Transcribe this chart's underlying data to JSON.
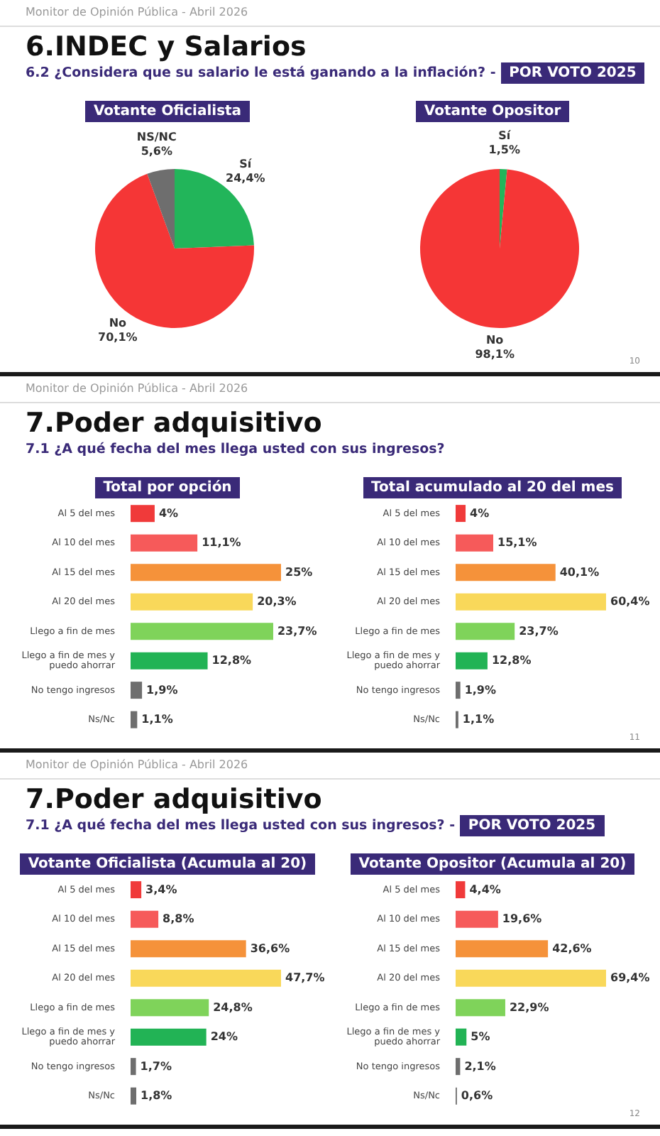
{
  "chart_data": [
    {
      "type": "pie",
      "title": "Votante Oficialista",
      "categories": [
        "Sí",
        "No",
        "NS/NC"
      ],
      "values": [
        24.4,
        70.1,
        5.6
      ],
      "value_labels": [
        "24,4%",
        "70,1%",
        "5,6%"
      ],
      "colors": [
        "#22b55a",
        "#f53636",
        "#6e6e6e"
      ],
      "annotations": [
        "Monitor de Opinión Pública - Abril 2026",
        "6.INDEC y Salarios",
        "6.2 ¿Considera que su salario le está ganando a la inflación? -",
        "POR VOTO 2025"
      ]
    },
    {
      "type": "pie",
      "title": "Votante Opositor",
      "categories": [
        "Sí",
        "No"
      ],
      "values": [
        1.5,
        98.1
      ],
      "value_labels": [
        "1,5%",
        "98,1%"
      ],
      "colors": [
        "#22b55a",
        "#f53636"
      ],
      "annotations": [
        "10"
      ]
    },
    {
      "type": "bar",
      "orientation": "horizontal",
      "title": "Total por opción",
      "categories": [
        "Al 5 del mes",
        "Al 10 del mes",
        "Al 15 del mes",
        "Al 20 del mes",
        "Llego a fin de mes",
        "Llego a fin de mes y puedo ahorrar",
        "No tengo ingresos",
        "Ns/Nc"
      ],
      "values": [
        4,
        11.1,
        25,
        20.3,
        23.7,
        12.8,
        1.9,
        1.1
      ],
      "value_labels": [
        "4%",
        "11,1%",
        "25%",
        "20,3%",
        "23,7%",
        "12,8%",
        "1,9%",
        "1,1%"
      ],
      "colors": [
        "#f03a3a",
        "#f65a5a",
        "#f5923a",
        "#f9d85a",
        "#7fd35a",
        "#22b355",
        "#6e6e6e",
        "#6e6e6e"
      ],
      "annotations": [
        "Monitor de Opinión Pública - Abril 2026",
        "7.Poder adquisitivo",
        "7.1 ¿A qué fecha del mes llega usted con sus ingresos?"
      ]
    },
    {
      "type": "bar",
      "orientation": "horizontal",
      "title": "Total acumulado al 20 del mes",
      "categories": [
        "Al 5 del mes",
        "Al 10 del mes",
        "Al 15 del mes",
        "Al 20 del mes",
        "Llego a fin de mes",
        "Llego a fin de mes y puedo ahorrar",
        "No tengo ingresos",
        "Ns/Nc"
      ],
      "values": [
        4,
        15.1,
        40.1,
        60.4,
        23.7,
        12.8,
        1.9,
        1.1
      ],
      "value_labels": [
        "4%",
        "15,1%",
        "40,1%",
        "60,4%",
        "23,7%",
        "12,8%",
        "1,9%",
        "1,1%"
      ],
      "colors": [
        "#f03a3a",
        "#f65a5a",
        "#f5923a",
        "#f9d85a",
        "#7fd35a",
        "#22b355",
        "#6e6e6e",
        "#6e6e6e"
      ],
      "annotations": [
        "11"
      ]
    },
    {
      "type": "bar",
      "orientation": "horizontal",
      "title": "Votante Oficialista (Acumula al 20)",
      "categories": [
        "Al 5 del mes",
        "Al 10 del mes",
        "Al 15 del mes",
        "Al 20 del mes",
        "Llego a fin de mes",
        "Llego a fin de mes y puedo ahorrar",
        "No tengo ingresos",
        "Ns/Nc"
      ],
      "values": [
        3.4,
        8.8,
        36.6,
        47.7,
        24.8,
        24,
        1.7,
        1.8
      ],
      "value_labels": [
        "3,4%",
        "8,8%",
        "36,6%",
        "47,7%",
        "24,8%",
        "24%",
        "1,7%",
        "1,8%"
      ],
      "colors": [
        "#f03a3a",
        "#f65a5a",
        "#f5923a",
        "#f9d85a",
        "#7fd35a",
        "#22b355",
        "#6e6e6e",
        "#6e6e6e"
      ],
      "annotations": [
        "Monitor de Opinión Pública - Abril 2026",
        "7.Poder adquisitivo",
        "7.1 ¿A qué fecha del mes llega usted con sus ingresos?  -",
        "POR VOTO 2025"
      ]
    },
    {
      "type": "bar",
      "orientation": "horizontal",
      "title": "Votante Opositor (Acumula al 20)",
      "categories": [
        "Al 5 del mes",
        "Al 10 del mes",
        "Al 15 del mes",
        "Al 20 del mes",
        "Llego a fin de mes",
        "Llego a fin de mes y puedo ahorrar",
        "No tengo ingresos",
        "Ns/Nc"
      ],
      "values": [
        4.4,
        19.6,
        42.6,
        69.4,
        22.9,
        5,
        2.1,
        0.6
      ],
      "value_labels": [
        "4,4%",
        "19,6%",
        "42,6%",
        "69,4%",
        "22,9%",
        "5%",
        "2,1%",
        "0,6%"
      ],
      "colors": [
        "#f03a3a",
        "#f65a5a",
        "#f5923a",
        "#f9d85a",
        "#7fd35a",
        "#22b355",
        "#6e6e6e",
        "#6e6e6e"
      ],
      "annotations": [
        "12"
      ]
    }
  ]
}
